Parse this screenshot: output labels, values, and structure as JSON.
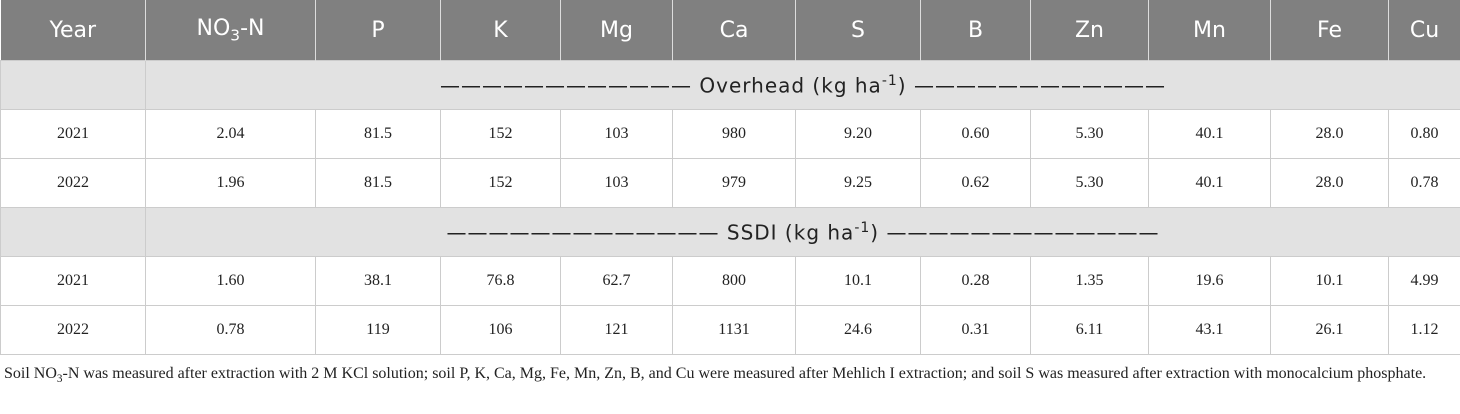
{
  "table": {
    "header": [
      "Year",
      {
        "pre": "NO",
        "sub": "3",
        "post": "-N"
      },
      "P",
      "K",
      "Mg",
      "Ca",
      "S",
      "B",
      "Zn",
      "Mn",
      "Fe",
      "Cu"
    ],
    "sections": [
      {
        "label": {
          "pre": "———————————— Overhead (kg ha",
          "sup": "-1",
          "post": ") ————————————"
        },
        "rows": [
          [
            "2021",
            "2.04",
            "81.5",
            "152",
            "103",
            "980",
            "9.20",
            "0.60",
            "5.30",
            "40.1",
            "28.0",
            "0.80"
          ],
          [
            "2022",
            "1.96",
            "81.5",
            "152",
            "103",
            "979",
            "9.25",
            "0.62",
            "5.30",
            "40.1",
            "28.0",
            "0.78"
          ]
        ]
      },
      {
        "label": {
          "pre": "————————————— SSDI (kg ha",
          "sup": "-1",
          "post": ") —————————————"
        },
        "rows": [
          [
            "2021",
            "1.60",
            "38.1",
            "76.8",
            "62.7",
            "800",
            "10.1",
            "0.28",
            "1.35",
            "19.6",
            "10.1",
            "4.99"
          ],
          [
            "2022",
            "0.78",
            "119",
            "106",
            "121",
            "1131",
            "24.6",
            "0.31",
            "6.11",
            "43.1",
            "26.1",
            "1.12"
          ]
        ]
      }
    ]
  },
  "footnote": {
    "pre": "Soil NO",
    "sub": "3",
    "post": "-N was measured after extraction with 2 M KCl solution; soil P, K, Ca, Mg, Fe, Mn, Zn, B, and Cu were measured after Mehlich I extraction; and soil S was measured after extraction with monocalcium phosphate."
  }
}
